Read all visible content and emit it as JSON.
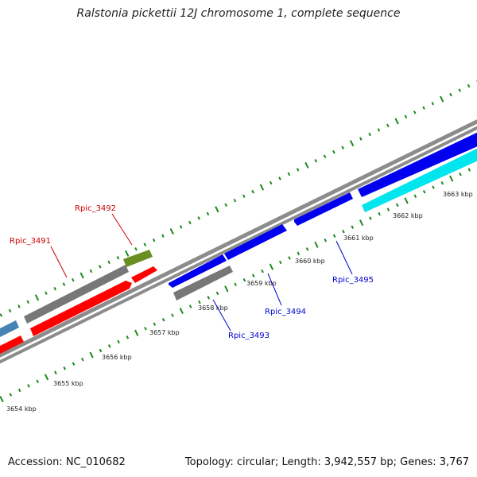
{
  "header": {
    "title": "Ralstonia pickettii 12J chromosome 1, complete sequence"
  },
  "footer": {
    "accession": "Accession: NC_010682",
    "summary": "Topology: circular; Length: 3,942,557 bp; Genes: 3,767"
  },
  "colors": {
    "backbone": "#8c8c8c",
    "forward_cds": "#ff0000",
    "reverse_cds": "#0000ee",
    "grey_feature": "#777777",
    "green_feature": "#6b8e23",
    "cyan_feature": "#00e5ee",
    "steelblue_feature": "#4682b4",
    "tick_outer": "#1a8a1a",
    "tick_inner": "#1a8a1a",
    "label_red": "#cc0000",
    "label_blue": "#0000cc"
  },
  "ticks": {
    "labels": [
      "3654 kbp",
      "3655 kbp",
      "3656 kbp",
      "3657 kbp",
      "3658 kbp",
      "3659 kbp",
      "3660 kbp",
      "3661 kbp",
      "3662 kbp",
      "3663 kbp"
    ]
  },
  "gene_labels": [
    {
      "text": "Rpic_3491",
      "color": "label_red"
    },
    {
      "text": "Rpic_3492",
      "color": "label_red"
    },
    {
      "text": "Rpic_3493",
      "color": "label_blue"
    },
    {
      "text": "Rpic_3494",
      "color": "label_blue"
    },
    {
      "text": "Rpic_3495",
      "color": "label_blue"
    }
  ]
}
